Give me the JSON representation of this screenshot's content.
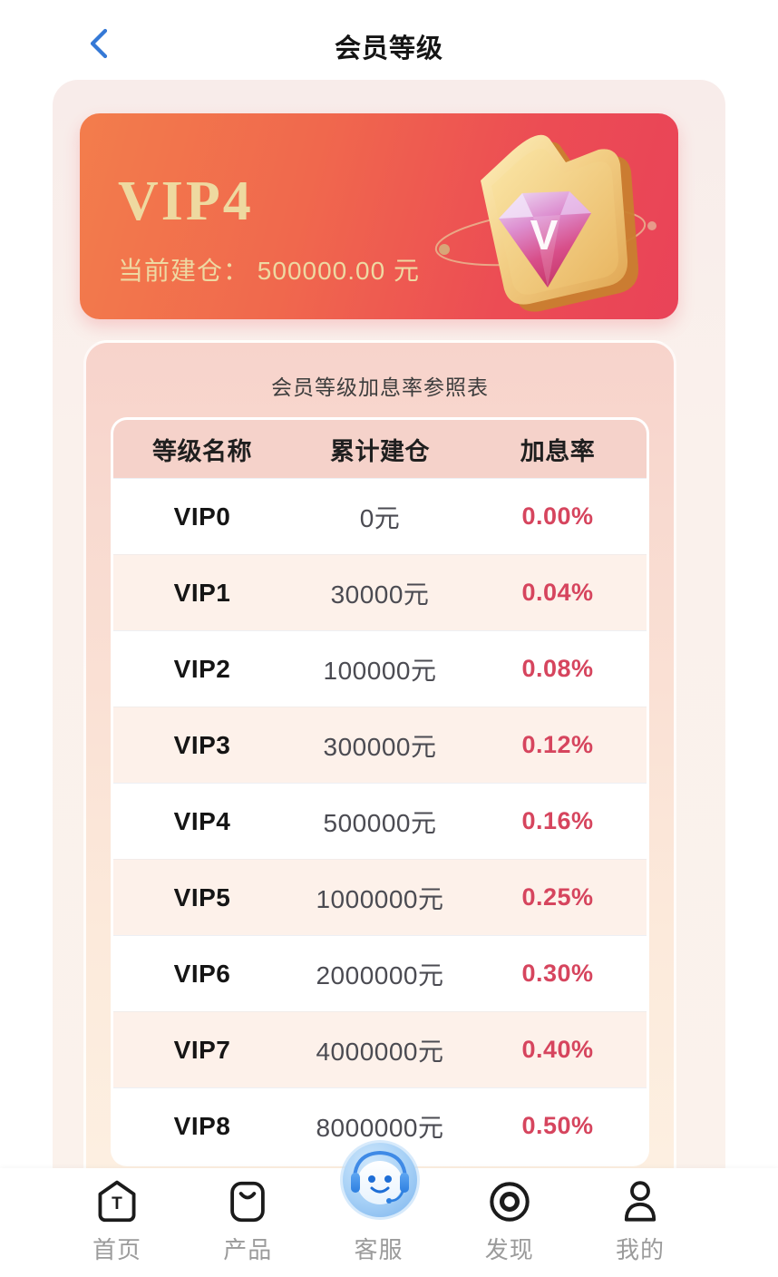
{
  "header": {
    "title": "会员等级",
    "back_icon": "chevron-left"
  },
  "vip_card": {
    "level": "VIP4",
    "position_label": "当前建仓：",
    "position_value": "500000.00",
    "position_unit": "元",
    "badge_icon": "vip-diamond-crown-badge",
    "colors": {
      "gradient_start": "#f37d4c",
      "gradient_end": "#e94358",
      "gold_text": "#eed9a0"
    }
  },
  "table_card": {
    "title": "会员等级加息率参照表",
    "columns": [
      "等级名称",
      "累计建仓",
      "加息率"
    ],
    "rows": [
      {
        "level": "VIP0",
        "amount": "0元",
        "rate": "0.00%"
      },
      {
        "level": "VIP1",
        "amount": "30000元",
        "rate": "0.04%"
      },
      {
        "level": "VIP2",
        "amount": "100000元",
        "rate": "0.08%"
      },
      {
        "level": "VIP3",
        "amount": "300000元",
        "rate": "0.12%"
      },
      {
        "level": "VIP4",
        "amount": "500000元",
        "rate": "0.16%"
      },
      {
        "level": "VIP5",
        "amount": "1000000元",
        "rate": "0.25%"
      },
      {
        "level": "VIP6",
        "amount": "2000000元",
        "rate": "0.30%"
      },
      {
        "level": "VIP7",
        "amount": "4000000元",
        "rate": "0.40%"
      },
      {
        "level": "VIP8",
        "amount": "8000000元",
        "rate": "0.50%"
      }
    ],
    "colors": {
      "header_bg": "#f5d2ca",
      "alt_row_bg": "#fdf1ea",
      "rate_text": "#d6455e"
    }
  },
  "tab_bar": {
    "items": [
      {
        "label": "首页",
        "icon": "home-icon"
      },
      {
        "label": "产品",
        "icon": "products-icon"
      },
      {
        "label": "客服",
        "icon": "customer-service-mascot-icon"
      },
      {
        "label": "发现",
        "icon": "discover-icon"
      },
      {
        "label": "我的",
        "icon": "profile-icon"
      }
    ]
  }
}
